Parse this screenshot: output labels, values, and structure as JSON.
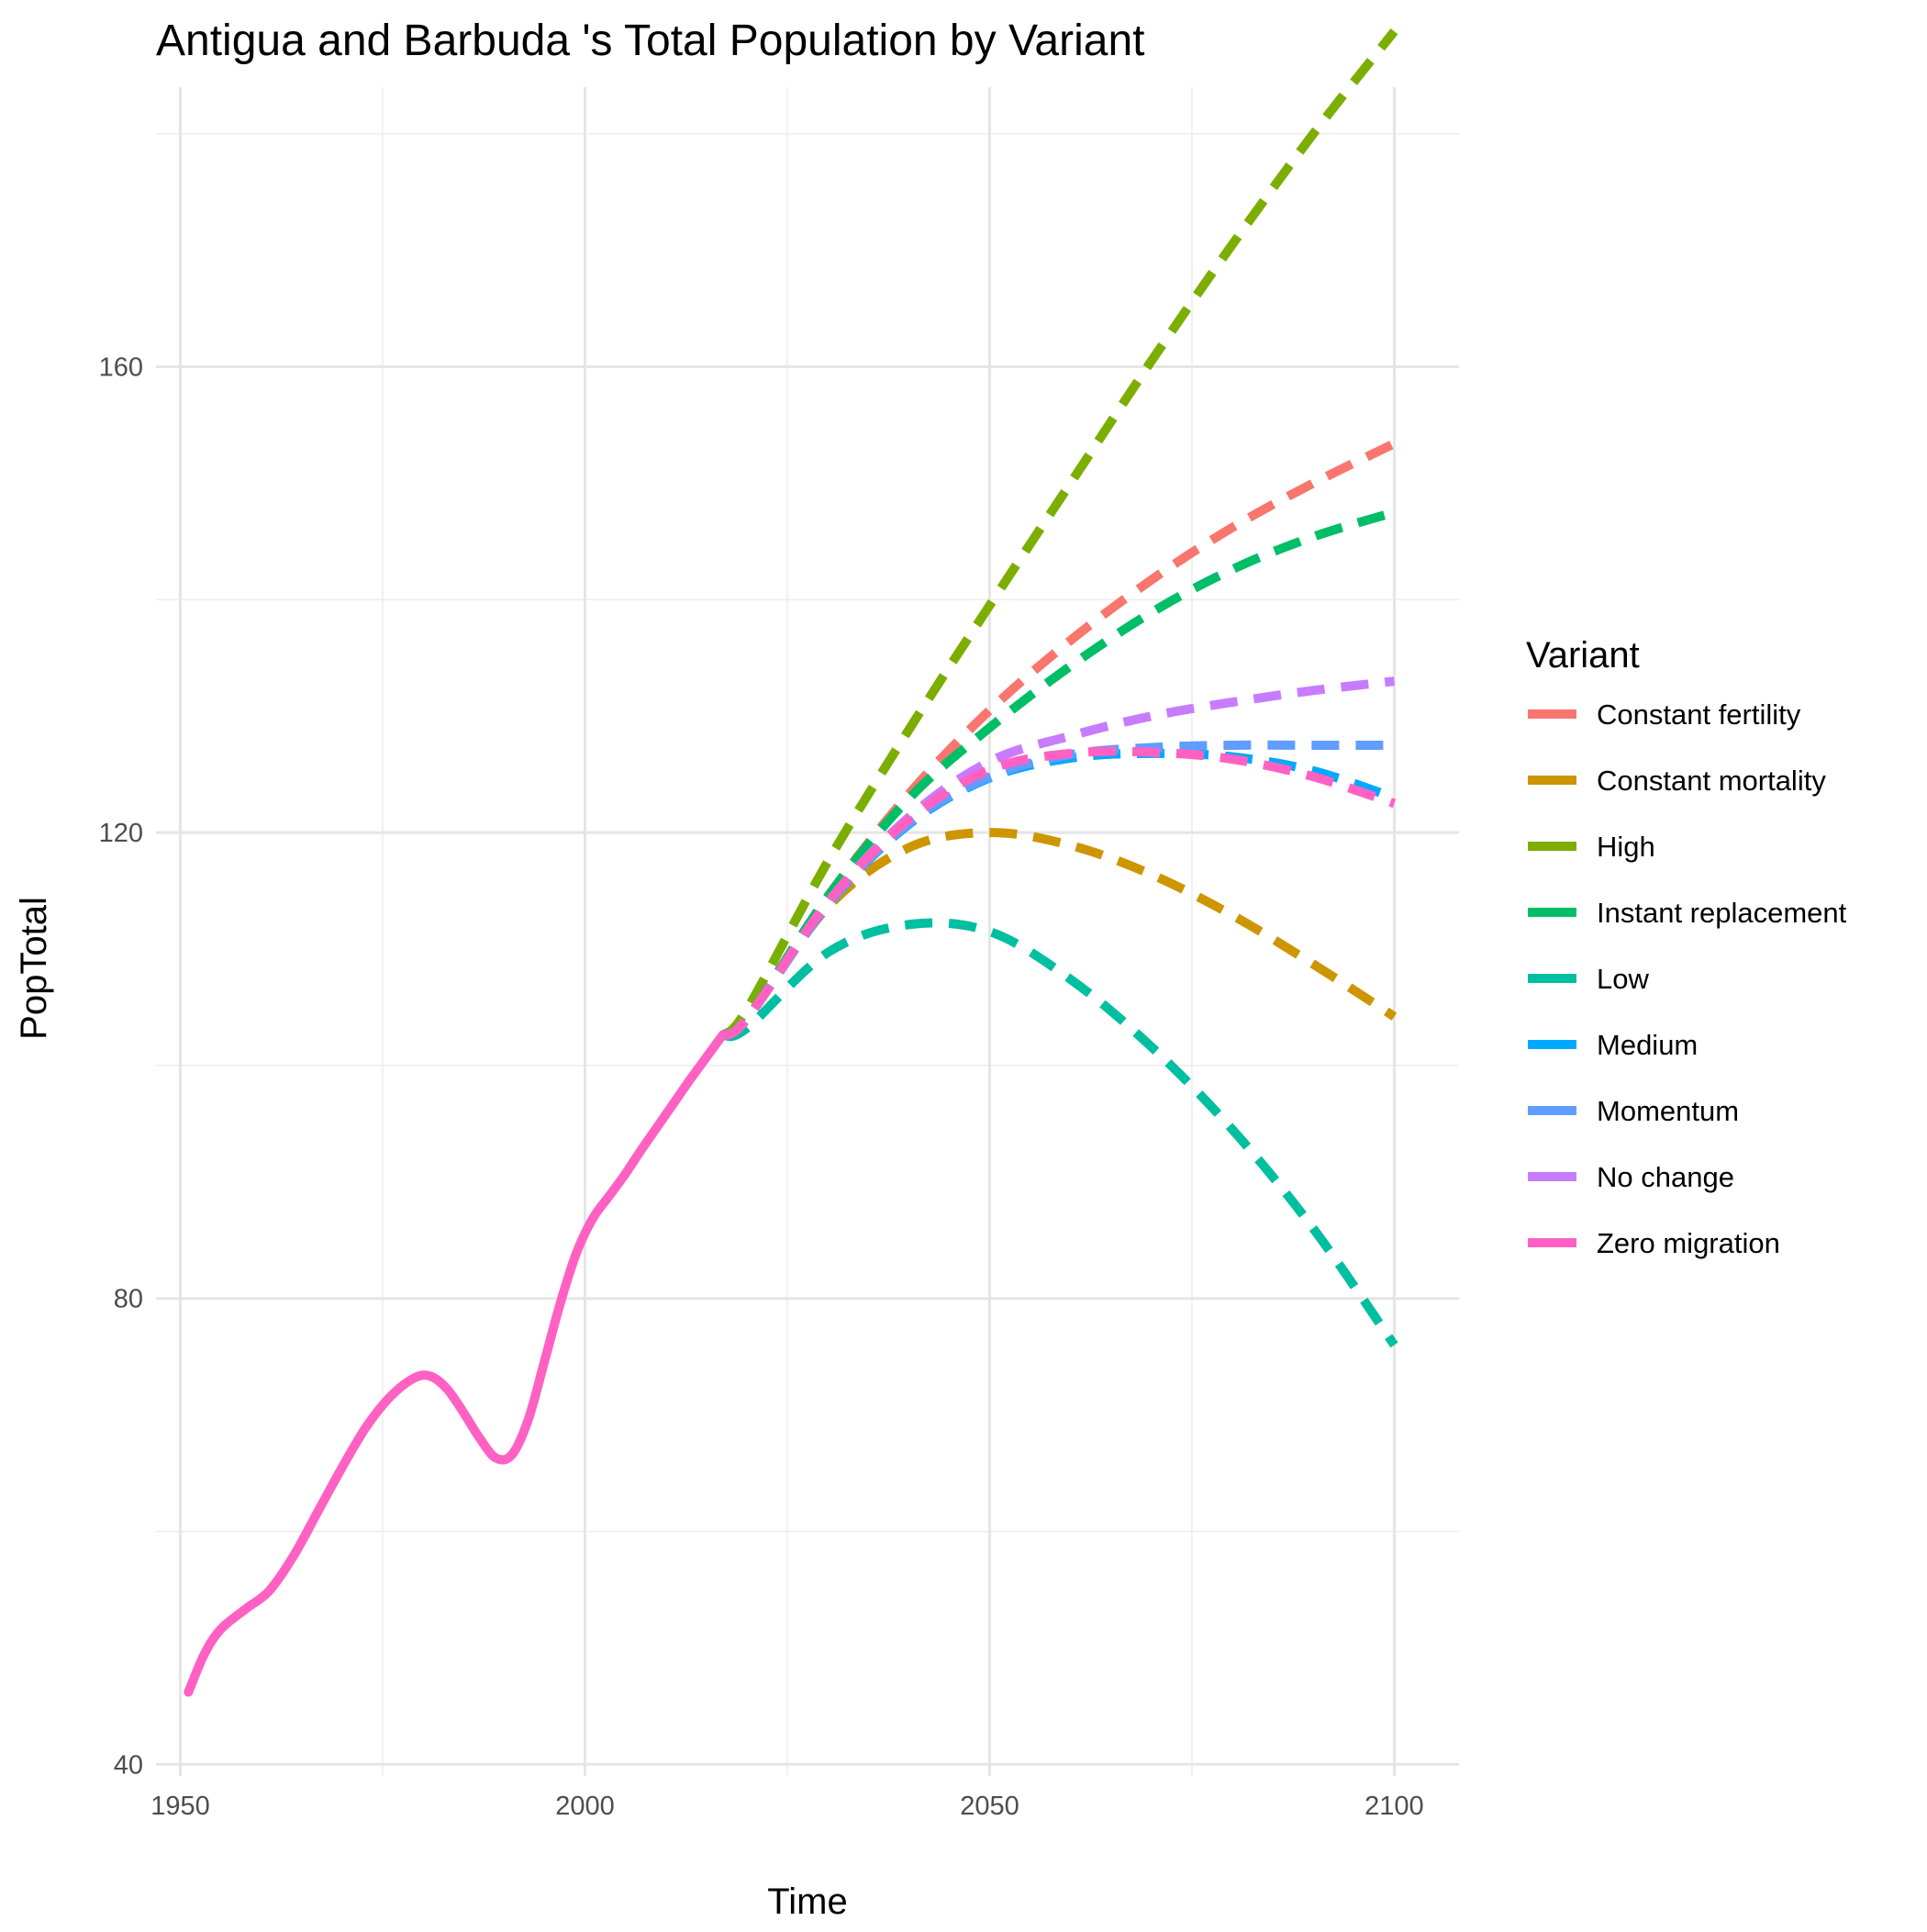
{
  "chart_data": {
    "type": "line",
    "title": "Antigua and Barbuda 's Total Population by Variant",
    "xlabel": "Time",
    "ylabel": "PopTotal",
    "xlim": [
      1947,
      2108
    ],
    "ylim": [
      39,
      184
    ],
    "x_ticks": [
      1950,
      2000,
      2050,
      2100
    ],
    "y_ticks": [
      40,
      80,
      120,
      160
    ],
    "grid": true,
    "legend": {
      "title": "Variant",
      "placement": "right"
    },
    "historical": {
      "x": [
        1951,
        1953,
        1955,
        1958,
        1961,
        1964,
        1967,
        1970,
        1973,
        1976,
        1979,
        1981,
        1983,
        1985,
        1987,
        1989,
        1991,
        1993,
        1995,
        1997,
        1999,
        2001,
        2003,
        2005,
        2007,
        2009,
        2011,
        2013,
        2015,
        2017
      ],
      "y": [
        46.2,
        49.5,
        51.6,
        53.3,
        54.9,
        57.9,
        61.7,
        65.5,
        69.0,
        71.6,
        73.2,
        73.3,
        72.2,
        70.2,
        68.0,
        66.3,
        66.6,
        69.6,
        74.6,
        79.7,
        84.0,
        86.9,
        88.8,
        90.7,
        92.8,
        94.8,
        96.8,
        98.8,
        100.7,
        102.6
      ]
    },
    "x": [
      2020,
      2030,
      2040,
      2050,
      2060,
      2070,
      2080,
      2090,
      2100
    ],
    "series": [
      {
        "name": "Constant fertility",
        "color": "#F8766D",
        "values": [
          104.0,
          114.5,
          123.3,
          130.5,
          136.5,
          141.7,
          146.2,
          150.0,
          153.4
        ]
      },
      {
        "name": "Constant mortality",
        "color": "#CD9600",
        "values": [
          104.0,
          113.6,
          118.7,
          120.0,
          118.9,
          116.4,
          112.9,
          108.7,
          104.2
        ]
      },
      {
        "name": "High",
        "color": "#7CAE00",
        "values": [
          104.8,
          117.5,
          128.8,
          139.5,
          150.0,
          160.5,
          170.5,
          180.0,
          188.8
        ]
      },
      {
        "name": "Instant replacement",
        "color": "#00BE67",
        "values": [
          104.0,
          114.5,
          122.9,
          129.0,
          134.3,
          138.9,
          142.6,
          145.4,
          147.5
        ]
      },
      {
        "name": "Low",
        "color": "#00BFA0",
        "values": [
          103.2,
          109.7,
          112.1,
          111.5,
          107.4,
          101.6,
          94.5,
          86.0,
          76.0
        ]
      },
      {
        "name": "Medium",
        "color": "#00A9FF",
        "values": [
          104.0,
          113.8,
          120.7,
          124.7,
          126.4,
          126.8,
          126.5,
          125.3,
          123.0
        ]
      },
      {
        "name": "Momentum",
        "color": "#619CFF",
        "values": [
          104.0,
          113.8,
          120.8,
          124.8,
          126.7,
          127.3,
          127.5,
          127.5,
          127.5
        ]
      },
      {
        "name": "No change",
        "color": "#C77CFF",
        "values": [
          104.0,
          114.0,
          121.3,
          126.1,
          128.3,
          130.0,
          131.2,
          132.2,
          133.0
        ]
      },
      {
        "name": "Zero migration",
        "color": "#FF61C3",
        "values": [
          104.0,
          114.0,
          121.1,
          125.4,
          126.8,
          126.9,
          126.3,
          124.8,
          122.5
        ]
      }
    ]
  }
}
